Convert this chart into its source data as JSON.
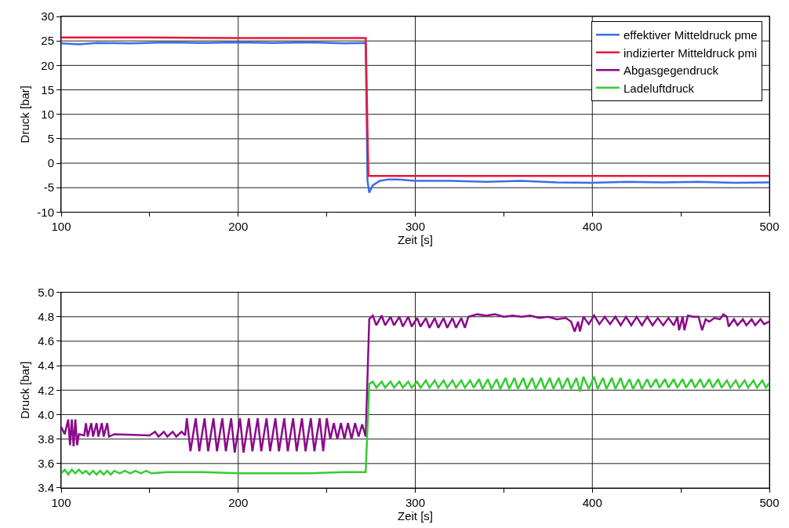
{
  "chart_data": [
    {
      "type": "line",
      "xlabel": "Zeit [s]",
      "ylabel": "Druck [bar]",
      "xlim": [
        100,
        500
      ],
      "xticks": [
        100,
        {
          "value": 150,
          "label": null
        },
        200,
        {
          "value": 250,
          "label": null
        },
        300,
        {
          "value": 350,
          "label": null
        },
        400,
        {
          "value": 450,
          "label": null
        },
        500
      ],
      "ylim": [
        -10,
        30
      ],
      "yticks": [
        -10,
        -5,
        0,
        5,
        10,
        15,
        20,
        25,
        30
      ],
      "grid": true,
      "legend": "top right",
      "line_style": "solid",
      "series": [
        {
          "name": "effektiver Mitteldruck pme",
          "color": "#3c6fe0",
          "x": [
            100,
            110,
            120,
            140,
            160,
            180,
            200,
            220,
            240,
            260,
            272,
            273,
            274,
            276,
            280,
            285,
            290,
            300,
            320,
            340,
            360,
            380,
            400,
            420,
            440,
            460,
            480,
            500
          ],
          "values": [
            24.5,
            24.3,
            24.6,
            24.5,
            24.7,
            24.6,
            24.7,
            24.6,
            24.7,
            24.5,
            24.6,
            -3.5,
            -6,
            -4.5,
            -3.6,
            -3.3,
            -3.3,
            -3.6,
            -3.6,
            -3.8,
            -3.6,
            -3.9,
            -4.0,
            -3.8,
            -3.9,
            -3.8,
            -4.0,
            -3.9
          ]
        },
        {
          "name": "indizierter Mitteldruck pmi",
          "color": "#e8173c",
          "x": [
            100,
            150,
            200,
            250,
            272,
            273.5,
            500
          ],
          "values": [
            25.7,
            25.7,
            25.6,
            25.6,
            25.6,
            -2.6,
            -2.6
          ]
        }
      ]
    },
    {
      "type": "line",
      "xlabel": "Zeit [s]",
      "ylabel": "Druck [bar]",
      "xlim": [
        100,
        500
      ],
      "xticks": [
        100,
        {
          "value": 150,
          "label": null
        },
        200,
        {
          "value": 250,
          "label": null
        },
        300,
        {
          "value": 350,
          "label": null
        },
        400,
        {
          "value": 450,
          "label": null
        },
        500
      ],
      "ylim": [
        3.4,
        5.0
      ],
      "yticks": [
        {
          "value": 3.4,
          "label": "3.4"
        },
        {
          "value": 3.6,
          "label": "3.6"
        },
        {
          "value": 3.8,
          "label": "3.8"
        },
        {
          "value": 4.0,
          "label": "4.0"
        },
        {
          "value": 4.2,
          "label": "4.2"
        },
        {
          "value": 4.4,
          "label": "4.4"
        },
        {
          "value": 4.6,
          "label": "4.6"
        },
        {
          "value": 4.8,
          "label": "4.8"
        },
        {
          "value": 5.0,
          "label": "5.0"
        }
      ],
      "grid": true,
      "legend": "top right",
      "line_style": "solid",
      "series": [
        {
          "name": "Abgasgegendruck",
          "color": "#8b0a8b",
          "x": [
            100,
            102,
            104,
            105,
            106,
            107,
            108,
            109,
            110,
            113,
            114,
            115,
            117,
            118,
            120,
            121,
            123,
            124,
            126,
            127,
            130,
            150,
            153,
            155,
            158,
            160,
            163,
            165,
            168,
            170,
            171,
            173,
            176,
            178,
            181,
            183,
            186,
            188,
            191,
            193,
            196,
            198,
            201,
            203,
            206,
            208,
            211,
            213,
            216,
            218,
            221,
            223,
            226,
            228,
            231,
            233,
            236,
            238,
            241,
            243,
            246,
            248,
            250,
            252,
            254,
            256,
            258,
            260,
            262,
            264,
            266,
            268,
            270,
            272,
            274,
            276,
            278,
            281,
            283,
            286,
            288,
            291,
            293,
            296,
            298,
            301,
            303,
            306,
            308,
            311,
            313,
            316,
            318,
            321,
            323,
            326,
            328,
            330,
            335,
            340,
            345,
            350,
            355,
            360,
            365,
            370,
            375,
            380,
            385,
            388,
            390,
            392,
            393,
            395,
            398,
            401,
            404,
            407,
            410,
            413,
            416,
            419,
            422,
            425,
            428,
            431,
            434,
            437,
            440,
            443,
            446,
            448,
            449,
            451,
            452,
            454,
            457,
            460,
            462,
            464,
            466,
            469,
            472,
            474,
            476,
            477,
            480,
            482,
            485,
            487,
            490,
            492,
            495,
            497,
            500
          ],
          "values": [
            3.9,
            3.84,
            3.96,
            3.75,
            3.96,
            3.74,
            3.96,
            3.75,
            3.84,
            3.83,
            3.93,
            3.82,
            3.93,
            3.82,
            3.93,
            3.82,
            3.93,
            3.82,
            3.93,
            3.82,
            3.84,
            3.83,
            3.86,
            3.82,
            3.86,
            3.82,
            3.86,
            3.82,
            3.86,
            3.83,
            3.97,
            3.7,
            3.97,
            3.7,
            3.97,
            3.7,
            3.97,
            3.7,
            3.97,
            3.7,
            3.97,
            3.69,
            3.97,
            3.69,
            3.97,
            3.7,
            3.97,
            3.7,
            3.97,
            3.7,
            3.97,
            3.7,
            3.97,
            3.7,
            3.97,
            3.7,
            3.97,
            3.7,
            3.97,
            3.7,
            3.97,
            3.7,
            3.97,
            3.8,
            3.93,
            3.8,
            3.93,
            3.8,
            3.93,
            3.8,
            3.93,
            3.82,
            3.92,
            3.82,
            4.78,
            4.81,
            4.73,
            4.81,
            4.73,
            4.8,
            4.73,
            4.8,
            4.72,
            4.8,
            4.72,
            4.79,
            4.72,
            4.79,
            4.71,
            4.79,
            4.71,
            4.79,
            4.71,
            4.79,
            4.71,
            4.79,
            4.71,
            4.8,
            4.82,
            4.81,
            4.82,
            4.8,
            4.81,
            4.8,
            4.81,
            4.79,
            4.8,
            4.78,
            4.79,
            4.76,
            4.68,
            4.76,
            4.68,
            4.8,
            4.74,
            4.81,
            4.74,
            4.8,
            4.74,
            4.8,
            4.73,
            4.8,
            4.73,
            4.8,
            4.73,
            4.8,
            4.73,
            4.79,
            4.73,
            4.79,
            4.73,
            4.8,
            4.69,
            4.8,
            4.69,
            4.81,
            4.8,
            4.8,
            4.69,
            4.78,
            4.76,
            4.79,
            4.78,
            4.82,
            4.8,
            4.72,
            4.78,
            4.73,
            4.78,
            4.73,
            4.78,
            4.73,
            4.78,
            4.74,
            4.76
          ]
        },
        {
          "name": "Ladeluftdruck",
          "color": "#33cc33",
          "x": [
            100,
            102,
            104,
            106,
            108,
            110,
            112,
            114,
            116,
            118,
            120,
            122,
            124,
            126,
            128,
            130,
            133,
            136,
            139,
            142,
            145,
            148,
            151,
            160,
            180,
            200,
            220,
            240,
            260,
            272,
            274,
            276,
            278,
            281,
            283,
            286,
            288,
            291,
            293,
            296,
            298,
            301,
            303,
            306,
            308,
            311,
            313,
            316,
            318,
            321,
            323,
            326,
            328,
            331,
            333,
            336,
            338,
            341,
            343,
            346,
            348,
            351,
            353,
            356,
            358,
            361,
            363,
            366,
            368,
            371,
            373,
            376,
            378,
            381,
            383,
            386,
            388,
            391,
            393,
            395,
            398,
            401,
            403,
            406,
            408,
            411,
            413,
            416,
            418,
            421,
            423,
            426,
            428,
            431,
            433,
            436,
            438,
            441,
            443,
            446,
            448,
            451,
            453,
            456,
            458,
            461,
            463,
            466,
            468,
            471,
            473,
            476,
            478,
            481,
            483,
            486,
            488,
            491,
            493,
            496,
            498,
            500
          ],
          "values": [
            3.52,
            3.55,
            3.51,
            3.55,
            3.52,
            3.55,
            3.52,
            3.54,
            3.51,
            3.54,
            3.51,
            3.54,
            3.51,
            3.54,
            3.51,
            3.54,
            3.52,
            3.54,
            3.52,
            3.54,
            3.52,
            3.54,
            3.52,
            3.53,
            3.53,
            3.52,
            3.52,
            3.52,
            3.53,
            3.53,
            4.25,
            4.27,
            4.22,
            4.27,
            4.22,
            4.27,
            4.22,
            4.27,
            4.22,
            4.27,
            4.22,
            4.27,
            4.22,
            4.28,
            4.22,
            4.28,
            4.22,
            4.28,
            4.22,
            4.28,
            4.22,
            4.28,
            4.22,
            4.28,
            4.22,
            4.29,
            4.21,
            4.29,
            4.21,
            4.29,
            4.21,
            4.3,
            4.21,
            4.3,
            4.21,
            4.3,
            4.21,
            4.3,
            4.21,
            4.3,
            4.21,
            4.3,
            4.21,
            4.3,
            4.21,
            4.3,
            4.21,
            4.3,
            4.19,
            4.31,
            4.21,
            4.31,
            4.21,
            4.3,
            4.21,
            4.3,
            4.21,
            4.3,
            4.21,
            4.29,
            4.21,
            4.29,
            4.21,
            4.29,
            4.22,
            4.29,
            4.22,
            4.29,
            4.22,
            4.29,
            4.22,
            4.29,
            4.22,
            4.29,
            4.22,
            4.29,
            4.22,
            4.29,
            4.22,
            4.29,
            4.22,
            4.28,
            4.22,
            4.28,
            4.22,
            4.28,
            4.22,
            4.28,
            4.22,
            4.28,
            4.22,
            4.26
          ]
        }
      ]
    }
  ]
}
